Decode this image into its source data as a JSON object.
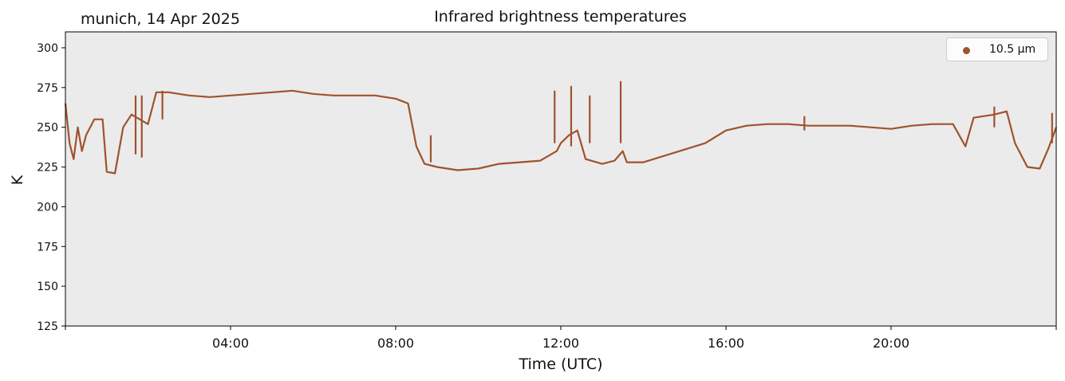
{
  "header": {
    "site_label": "munich, 14 Apr 2025"
  },
  "chart_data": {
    "type": "line",
    "title": "Infrared brightness temperatures",
    "xlabel": "Time (UTC)",
    "ylabel": "K",
    "xlim": [
      "00:00",
      "24:00"
    ],
    "ylim": [
      125,
      310
    ],
    "x_ticks": [
      "04:00",
      "08:00",
      "12:00",
      "16:00",
      "20:00"
    ],
    "y_ticks": [
      125,
      150,
      175,
      200,
      225,
      250,
      275,
      300
    ],
    "grid": false,
    "background": "#ebebeb",
    "legend": {
      "placement": "top-right",
      "entries": [
        "10.5 µm"
      ]
    },
    "series": [
      {
        "name": "10.5 µm",
        "color": "#a0522d",
        "x_hours": [
          0.0,
          0.1,
          0.2,
          0.3,
          0.4,
          0.5,
          0.7,
          0.9,
          1.0,
          1.2,
          1.4,
          1.6,
          1.8,
          2.0,
          2.2,
          2.5,
          3.0,
          3.5,
          4.0,
          4.5,
          5.0,
          5.5,
          6.0,
          6.5,
          7.0,
          7.5,
          8.0,
          8.3,
          8.5,
          8.7,
          9.0,
          9.5,
          10.0,
          10.5,
          11.0,
          11.5,
          11.9,
          12.0,
          12.2,
          12.4,
          12.6,
          13.0,
          13.3,
          13.5,
          13.6,
          14.0,
          14.5,
          15.0,
          15.5,
          16.0,
          16.5,
          17.0,
          17.5,
          18.0,
          18.5,
          19.0,
          19.5,
          20.0,
          20.5,
          21.0,
          21.5,
          21.8,
          22.0,
          22.5,
          22.8,
          23.0,
          23.3,
          23.6,
          23.8,
          24.0
        ],
        "y": [
          265,
          240,
          230,
          250,
          235,
          245,
          255,
          255,
          222,
          221,
          250,
          258,
          255,
          252,
          272,
          272,
          270,
          269,
          270,
          271,
          272,
          273,
          271,
          270,
          270,
          270,
          268,
          265,
          238,
          227,
          225,
          223,
          224,
          227,
          228,
          229,
          235,
          240,
          245,
          248,
          230,
          227,
          229,
          235,
          228,
          228,
          232,
          236,
          240,
          248,
          251,
          252,
          252,
          251,
          251,
          251,
          250,
          249,
          251,
          252,
          252,
          238,
          256,
          258,
          260,
          240,
          225,
          224,
          236,
          250
        ]
      }
    ],
    "spikes": [
      {
        "x_hour": 1.7,
        "low": 233,
        "high": 270
      },
      {
        "x_hour": 1.85,
        "low": 231,
        "high": 270
      },
      {
        "x_hour": 2.35,
        "low": 255,
        "high": 273
      },
      {
        "x_hour": 8.85,
        "low": 228,
        "high": 245
      },
      {
        "x_hour": 11.85,
        "low": 240,
        "high": 273
      },
      {
        "x_hour": 12.25,
        "low": 238,
        "high": 276
      },
      {
        "x_hour": 12.7,
        "low": 240,
        "high": 270
      },
      {
        "x_hour": 13.45,
        "low": 240,
        "high": 279
      },
      {
        "x_hour": 17.9,
        "low": 248,
        "high": 257
      },
      {
        "x_hour": 22.5,
        "low": 250,
        "high": 263
      },
      {
        "x_hour": 23.9,
        "low": 240,
        "high": 259
      }
    ]
  }
}
